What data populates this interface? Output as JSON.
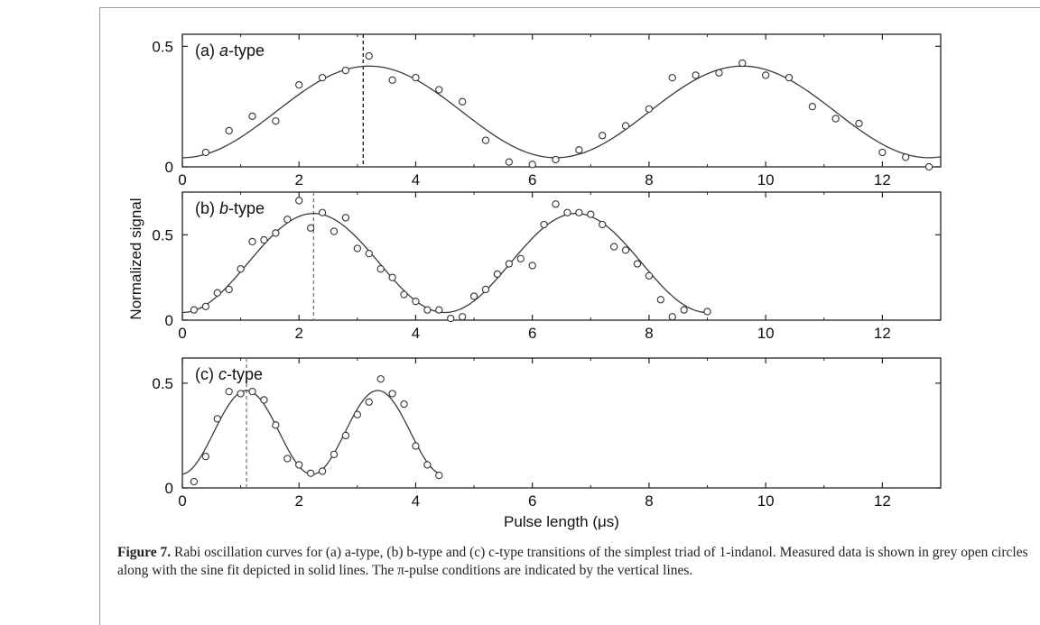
{
  "figure": {
    "y_axis_title": "Normalized signal",
    "x_axis_title": "Pulse length (μs)",
    "caption_label": "Figure 7.",
    "caption_text": "Rabi oscillation curves for (a) a-type, (b) b-type and (c) c-type transitions of the simplest triad of 1-indanol. Measured data is shown in grey open circles along with the sine fit depicted in solid lines. The π-pulse conditions are indicated by the vertical lines."
  },
  "chart_data": [
    {
      "type": "scatter",
      "panel_label": "(a) a-type",
      "panel_prefix": "(a) ",
      "panel_italic": "a",
      "panel_suffix": "-type",
      "xlim": [
        0,
        13
      ],
      "ylim": [
        0,
        0.55
      ],
      "xticks": [
        0,
        2,
        4,
        6,
        8,
        10,
        12
      ],
      "yticks": [
        0,
        0.5
      ],
      "ytick_labels": [
        "0",
        "0.5"
      ],
      "pi_pulse": 3.1,
      "pi_line_color": "#111111",
      "fit": {
        "offset": 0.228,
        "amplitude": 0.19,
        "period": 6.4,
        "phase_peak": 3.2
      },
      "points": [
        [
          0.4,
          0.06
        ],
        [
          0.8,
          0.15
        ],
        [
          1.2,
          0.21
        ],
        [
          1.6,
          0.19
        ],
        [
          2.0,
          0.34
        ],
        [
          2.4,
          0.37
        ],
        [
          2.8,
          0.4
        ],
        [
          3.2,
          0.46
        ],
        [
          3.6,
          0.36
        ],
        [
          4.0,
          0.37
        ],
        [
          4.4,
          0.32
        ],
        [
          4.8,
          0.27
        ],
        [
          5.2,
          0.11
        ],
        [
          5.6,
          0.02
        ],
        [
          6.0,
          0.01
        ],
        [
          6.4,
          0.03
        ],
        [
          6.8,
          0.07
        ],
        [
          7.2,
          0.13
        ],
        [
          7.6,
          0.17
        ],
        [
          8.0,
          0.24
        ],
        [
          8.4,
          0.37
        ],
        [
          8.8,
          0.38
        ],
        [
          9.2,
          0.39
        ],
        [
          9.6,
          0.43
        ],
        [
          10.0,
          0.38
        ],
        [
          10.4,
          0.37
        ],
        [
          10.8,
          0.25
        ],
        [
          11.2,
          0.2
        ],
        [
          11.6,
          0.18
        ],
        [
          12.0,
          0.06
        ],
        [
          12.4,
          0.04
        ],
        [
          12.8,
          0.0
        ]
      ]
    },
    {
      "type": "scatter",
      "panel_label": "(b) b-type",
      "panel_prefix": "(b) ",
      "panel_italic": "b",
      "panel_suffix": "-type",
      "xlim": [
        0,
        13
      ],
      "ylim": [
        0,
        0.75
      ],
      "xticks": [
        0,
        2,
        4,
        6,
        8,
        10,
        12
      ],
      "yticks": [
        0,
        0.5
      ],
      "ytick_labels": [
        "0",
        "0.5"
      ],
      "pi_pulse": 2.25,
      "pi_line_color": "#777777",
      "fit": {
        "offset": 0.335,
        "amplitude": 0.29,
        "period": 4.5,
        "phase_peak": 2.25,
        "x_end": 9.0
      },
      "points": [
        [
          0.2,
          0.06
        ],
        [
          0.4,
          0.08
        ],
        [
          0.6,
          0.16
        ],
        [
          0.8,
          0.18
        ],
        [
          1.0,
          0.3
        ],
        [
          1.2,
          0.46
        ],
        [
          1.4,
          0.47
        ],
        [
          1.6,
          0.51
        ],
        [
          1.8,
          0.59
        ],
        [
          2.0,
          0.7
        ],
        [
          2.2,
          0.54
        ],
        [
          2.4,
          0.63
        ],
        [
          2.6,
          0.52
        ],
        [
          2.8,
          0.6
        ],
        [
          3.0,
          0.42
        ],
        [
          3.2,
          0.39
        ],
        [
          3.4,
          0.3
        ],
        [
          3.6,
          0.25
        ],
        [
          3.8,
          0.15
        ],
        [
          4.0,
          0.11
        ],
        [
          4.2,
          0.06
        ],
        [
          4.4,
          0.06
        ],
        [
          4.6,
          0.01
        ],
        [
          4.8,
          0.02
        ],
        [
          5.0,
          0.14
        ],
        [
          5.2,
          0.18
        ],
        [
          5.4,
          0.27
        ],
        [
          5.6,
          0.33
        ],
        [
          5.8,
          0.36
        ],
        [
          6.0,
          0.32
        ],
        [
          6.2,
          0.56
        ],
        [
          6.4,
          0.68
        ],
        [
          6.6,
          0.63
        ],
        [
          6.8,
          0.63
        ],
        [
          7.0,
          0.62
        ],
        [
          7.2,
          0.56
        ],
        [
          7.4,
          0.43
        ],
        [
          7.6,
          0.41
        ],
        [
          7.8,
          0.33
        ],
        [
          8.0,
          0.26
        ],
        [
          8.2,
          0.12
        ],
        [
          8.4,
          0.02
        ],
        [
          8.6,
          0.06
        ],
        [
          9.0,
          0.05
        ]
      ]
    },
    {
      "type": "scatter",
      "panel_label": "(c) c-type",
      "panel_prefix": "(c) ",
      "panel_italic": "c",
      "panel_suffix": "-type",
      "xlim": [
        0,
        13
      ],
      "ylim": [
        0,
        0.62
      ],
      "xticks": [
        0,
        2,
        4,
        6,
        8,
        10,
        12
      ],
      "xtick_labels": [
        "0",
        "2",
        "4",
        "6",
        "8",
        "10",
        "12"
      ],
      "yticks": [
        0,
        0.5
      ],
      "ytick_labels": [
        "0",
        "0.5"
      ],
      "pi_pulse": 1.1,
      "pi_line_color": "#777777",
      "fit": {
        "offset": 0.265,
        "amplitude": 0.2,
        "period": 2.25,
        "phase_peak": 1.1,
        "x_end": 4.4
      },
      "points": [
        [
          0.2,
          0.03
        ],
        [
          0.4,
          0.15
        ],
        [
          0.6,
          0.33
        ],
        [
          0.8,
          0.46
        ],
        [
          1.0,
          0.45
        ],
        [
          1.2,
          0.46
        ],
        [
          1.4,
          0.42
        ],
        [
          1.6,
          0.3
        ],
        [
          1.8,
          0.14
        ],
        [
          2.0,
          0.11
        ],
        [
          2.2,
          0.07
        ],
        [
          2.4,
          0.08
        ],
        [
          2.6,
          0.16
        ],
        [
          2.8,
          0.25
        ],
        [
          3.0,
          0.35
        ],
        [
          3.2,
          0.41
        ],
        [
          3.4,
          0.52
        ],
        [
          3.6,
          0.45
        ],
        [
          3.8,
          0.4
        ],
        [
          4.0,
          0.2
        ],
        [
          4.2,
          0.11
        ],
        [
          4.4,
          0.06
        ]
      ]
    }
  ]
}
